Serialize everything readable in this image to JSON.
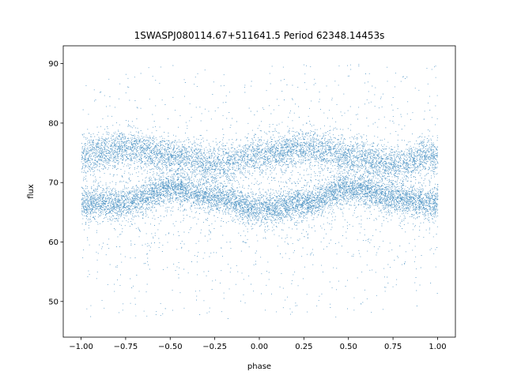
{
  "chart_data": {
    "type": "scatter",
    "title": "1SWASPJ080114.67+511641.5 Period 62348.14453s",
    "xlabel": "phase",
    "ylabel": "flux",
    "xlim": [
      -1.1,
      1.1
    ],
    "ylim": [
      44,
      93
    ],
    "xticks": [
      -1.0,
      -0.75,
      -0.5,
      -0.25,
      0.0,
      0.25,
      0.5,
      0.75,
      1.0
    ],
    "xtick_labels": [
      "−1.00",
      "−0.75",
      "−0.50",
      "−0.25",
      "0.00",
      "0.25",
      "0.50",
      "0.75",
      "1.00"
    ],
    "yticks": [
      50,
      60,
      70,
      80,
      90
    ],
    "ytick_labels": [
      "50",
      "60",
      "70",
      "80",
      "90"
    ],
    "grid": false,
    "legend": "none",
    "marker_color": "#1f77b4",
    "x_range": [
      -1.0,
      1.0
    ],
    "point_count_estimate": 60000,
    "bands": [
      {
        "mean_flux_at_phase": [
          [
            -1.0,
            74.5
          ],
          [
            -0.75,
            75.8
          ],
          [
            -0.5,
            74.5
          ],
          [
            -0.25,
            73.0
          ],
          [
            0.0,
            74.5
          ],
          [
            0.25,
            75.8
          ],
          [
            0.5,
            74.5
          ],
          [
            0.75,
            73.0
          ],
          [
            1.0,
            74.5
          ]
        ]
      },
      {
        "mean_flux_at_phase": [
          [
            -1.0,
            66.5
          ],
          [
            -0.75,
            66.5
          ],
          [
            -0.5,
            69.0
          ],
          [
            -0.25,
            67.5
          ],
          [
            0.0,
            65.5
          ],
          [
            0.25,
            66.5
          ],
          [
            0.5,
            69.0
          ],
          [
            0.75,
            67.5
          ],
          [
            1.0,
            66.5
          ]
        ]
      }
    ]
  }
}
